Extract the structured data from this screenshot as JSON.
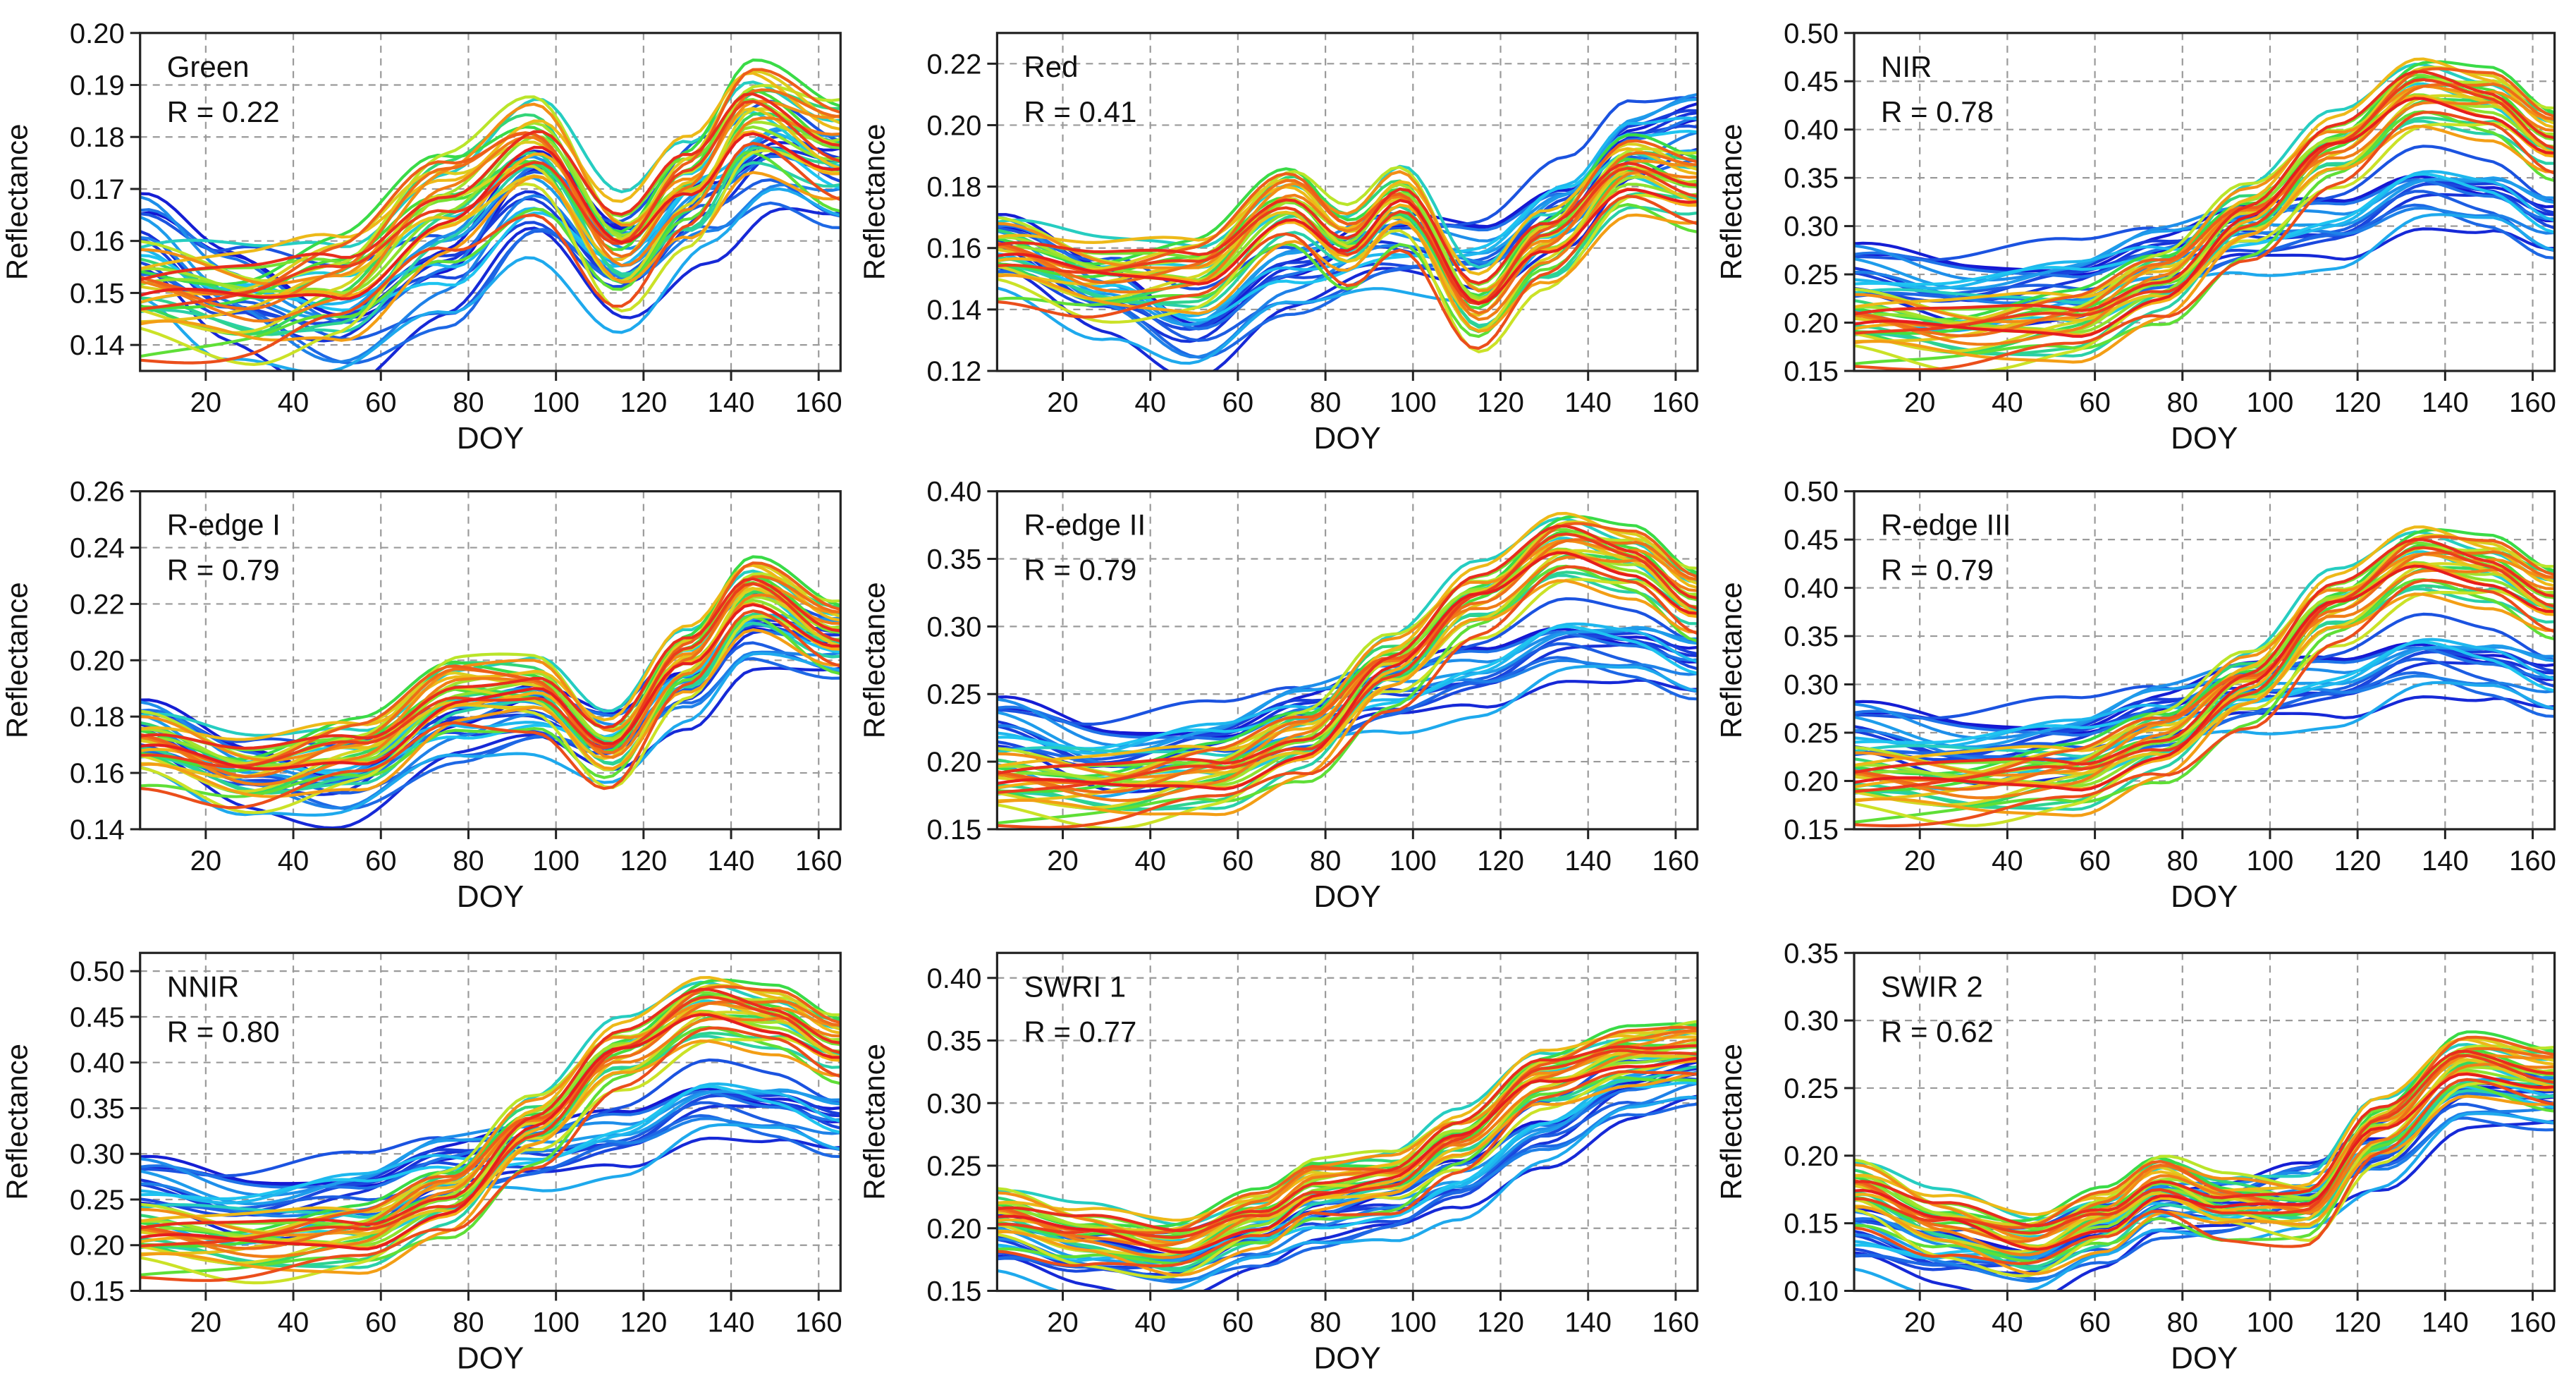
{
  "figure": {
    "xlabel": "DOY",
    "ylabel": "Reflectance"
  },
  "colors": {
    "low": "#1414d2",
    "mid": "#1ec8f0",
    "high": "#e61e1e",
    "grid": "#9a9a9a",
    "frame": "#222222"
  },
  "chart_data": [
    {
      "type": "line",
      "title": "Green",
      "annotation": "R = 0.22",
      "xlabel": "DOY",
      "ylabel": "Reflectance",
      "xlim": [
        5,
        165
      ],
      "ylim": [
        0.135,
        0.2
      ],
      "xticks": [
        "20",
        "40",
        "60",
        "80",
        "100",
        "120",
        "140",
        "160"
      ],
      "yticks": [
        "0.14",
        "0.15",
        "0.16",
        "0.17",
        "0.18",
        "0.19",
        "0.20"
      ],
      "profile": [
        [
          5,
          0.15
        ],
        [
          30,
          0.148
        ],
        [
          50,
          0.152
        ],
        [
          75,
          0.168
        ],
        [
          95,
          0.178
        ],
        [
          115,
          0.158
        ],
        [
          130,
          0.17
        ],
        [
          145,
          0.185
        ],
        [
          165,
          0.178
        ]
      ],
      "low_mean": [
        [
          5,
          0.16
        ],
        [
          25,
          0.15
        ],
        [
          50,
          0.143
        ],
        [
          75,
          0.153
        ],
        [
          95,
          0.168
        ],
        [
          115,
          0.155
        ],
        [
          135,
          0.168
        ],
        [
          150,
          0.176
        ],
        [
          165,
          0.172
        ]
      ],
      "spread": 0.01
    },
    {
      "type": "line",
      "title": "Red",
      "annotation": "R = 0.41",
      "xlabel": "DOY",
      "ylabel": "Reflectance",
      "xlim": [
        5,
        165
      ],
      "ylim": [
        0.12,
        0.23
      ],
      "xticks": [
        "20",
        "40",
        "60",
        "80",
        "100",
        "120",
        "140",
        "160"
      ],
      "yticks": [
        "0.12",
        "0.14",
        "0.16",
        "0.18",
        "0.20",
        "0.22"
      ],
      "profile": [
        [
          5,
          0.158
        ],
        [
          30,
          0.15
        ],
        [
          50,
          0.152
        ],
        [
          72,
          0.175
        ],
        [
          85,
          0.162
        ],
        [
          97,
          0.175
        ],
        [
          115,
          0.14
        ],
        [
          130,
          0.16
        ],
        [
          150,
          0.185
        ],
        [
          165,
          0.18
        ]
      ],
      "low_mean": [
        [
          5,
          0.16
        ],
        [
          30,
          0.145
        ],
        [
          50,
          0.132
        ],
        [
          72,
          0.15
        ],
        [
          95,
          0.16
        ],
        [
          115,
          0.158
        ],
        [
          135,
          0.175
        ],
        [
          150,
          0.195
        ],
        [
          165,
          0.2
        ]
      ],
      "spread": 0.012
    },
    {
      "type": "line",
      "title": "NIR",
      "annotation": "R = 0.78",
      "xlabel": "DOY",
      "ylabel": "Reflectance",
      "xlim": [
        5,
        165
      ],
      "ylim": [
        0.15,
        0.5
      ],
      "xticks": [
        "20",
        "40",
        "60",
        "80",
        "100",
        "120",
        "140",
        "160"
      ],
      "yticks": [
        "0.15",
        "0.20",
        "0.25",
        "0.30",
        "0.35",
        "0.40",
        "0.45",
        "0.50"
      ],
      "profile": [
        [
          5,
          0.2
        ],
        [
          30,
          0.19
        ],
        [
          55,
          0.2
        ],
        [
          75,
          0.24
        ],
        [
          95,
          0.31
        ],
        [
          115,
          0.38
        ],
        [
          135,
          0.44
        ],
        [
          150,
          0.43
        ],
        [
          165,
          0.39
        ]
      ],
      "low_mean": [
        [
          5,
          0.25
        ],
        [
          30,
          0.235
        ],
        [
          55,
          0.245
        ],
        [
          75,
          0.27
        ],
        [
          95,
          0.29
        ],
        [
          115,
          0.3
        ],
        [
          135,
          0.34
        ],
        [
          150,
          0.33
        ],
        [
          165,
          0.3
        ]
      ],
      "spread": 0.035
    },
    {
      "type": "line",
      "title": "R-edge I",
      "annotation": "R = 0.79",
      "xlabel": "DOY",
      "ylabel": "Reflectance",
      "xlim": [
        5,
        165
      ],
      "ylim": [
        0.14,
        0.26
      ],
      "xticks": [
        "20",
        "40",
        "60",
        "80",
        "100",
        "120",
        "140",
        "160"
      ],
      "yticks": [
        "0.14",
        "0.16",
        "0.18",
        "0.20",
        "0.22",
        "0.24",
        "0.26"
      ],
      "profile": [
        [
          5,
          0.17
        ],
        [
          30,
          0.16
        ],
        [
          55,
          0.168
        ],
        [
          78,
          0.19
        ],
        [
          95,
          0.19
        ],
        [
          112,
          0.168
        ],
        [
          130,
          0.2
        ],
        [
          145,
          0.225
        ],
        [
          165,
          0.21
        ]
      ],
      "low_mean": [
        [
          5,
          0.175
        ],
        [
          30,
          0.16
        ],
        [
          50,
          0.155
        ],
        [
          78,
          0.175
        ],
        [
          95,
          0.18
        ],
        [
          112,
          0.172
        ],
        [
          130,
          0.19
        ],
        [
          145,
          0.21
        ],
        [
          165,
          0.205
        ]
      ],
      "spread": 0.012
    },
    {
      "type": "line",
      "title": "R-edge II",
      "annotation": "R = 0.79",
      "xlabel": "DOY",
      "ylabel": "Reflectance",
      "xlim": [
        5,
        165
      ],
      "ylim": [
        0.15,
        0.4
      ],
      "xticks": [
        "20",
        "40",
        "60",
        "80",
        "100",
        "120",
        "140",
        "160"
      ],
      "yticks": [
        "0.15",
        "0.20",
        "0.25",
        "0.30",
        "0.35",
        "0.40"
      ],
      "profile": [
        [
          5,
          0.185
        ],
        [
          30,
          0.18
        ],
        [
          55,
          0.19
        ],
        [
          75,
          0.215
        ],
        [
          95,
          0.27
        ],
        [
          115,
          0.32
        ],
        [
          135,
          0.36
        ],
        [
          150,
          0.35
        ],
        [
          165,
          0.32
        ]
      ],
      "low_mean": [
        [
          5,
          0.225
        ],
        [
          30,
          0.205
        ],
        [
          55,
          0.215
        ],
        [
          75,
          0.235
        ],
        [
          95,
          0.25
        ],
        [
          115,
          0.265
        ],
        [
          135,
          0.29
        ],
        [
          150,
          0.285
        ],
        [
          165,
          0.27
        ]
      ],
      "spread": 0.025
    },
    {
      "type": "line",
      "title": "R-edge III",
      "annotation": "R = 0.79",
      "xlabel": "DOY",
      "ylabel": "Reflectance",
      "xlim": [
        5,
        165
      ],
      "ylim": [
        0.15,
        0.5
      ],
      "xticks": [
        "20",
        "40",
        "60",
        "80",
        "100",
        "120",
        "140",
        "160"
      ],
      "yticks": [
        "0.15",
        "0.20",
        "0.25",
        "0.30",
        "0.35",
        "0.40",
        "0.45",
        "0.50"
      ],
      "profile": [
        [
          5,
          0.2
        ],
        [
          30,
          0.195
        ],
        [
          55,
          0.205
        ],
        [
          75,
          0.24
        ],
        [
          95,
          0.3
        ],
        [
          115,
          0.38
        ],
        [
          135,
          0.43
        ],
        [
          150,
          0.42
        ],
        [
          165,
          0.39
        ]
      ],
      "low_mean": [
        [
          5,
          0.25
        ],
        [
          30,
          0.235
        ],
        [
          55,
          0.245
        ],
        [
          75,
          0.27
        ],
        [
          95,
          0.29
        ],
        [
          115,
          0.3
        ],
        [
          135,
          0.33
        ],
        [
          150,
          0.32
        ],
        [
          165,
          0.3
        ]
      ],
      "spread": 0.035
    },
    {
      "type": "line",
      "title": "NNIR",
      "annotation": "R = 0.80",
      "xlabel": "DOY",
      "ylabel": "Reflectance",
      "xlim": [
        5,
        165
      ],
      "ylim": [
        0.15,
        0.52
      ],
      "xticks": [
        "20",
        "40",
        "60",
        "80",
        "100",
        "120",
        "140",
        "160"
      ],
      "yticks": [
        "0.15",
        "0.20",
        "0.25",
        "0.30",
        "0.35",
        "0.40",
        "0.45",
        "0.50"
      ],
      "profile": [
        [
          5,
          0.21
        ],
        [
          30,
          0.2
        ],
        [
          55,
          0.21
        ],
        [
          75,
          0.25
        ],
        [
          95,
          0.33
        ],
        [
          115,
          0.41
        ],
        [
          135,
          0.46
        ],
        [
          150,
          0.45
        ],
        [
          165,
          0.42
        ]
      ],
      "low_mean": [
        [
          5,
          0.265
        ],
        [
          30,
          0.245
        ],
        [
          55,
          0.26
        ],
        [
          75,
          0.29
        ],
        [
          95,
          0.3
        ],
        [
          115,
          0.32
        ],
        [
          135,
          0.36
        ],
        [
          150,
          0.35
        ],
        [
          165,
          0.33
        ]
      ],
      "spread": 0.035
    },
    {
      "type": "line",
      "title": "SWRI 1",
      "annotation": "R = 0.77",
      "xlabel": "DOY",
      "ylabel": "Reflectance",
      "xlim": [
        5,
        165
      ],
      "ylim": [
        0.15,
        0.42
      ],
      "xticks": [
        "20",
        "40",
        "60",
        "80",
        "100",
        "120",
        "140",
        "160"
      ],
      "yticks": [
        "0.15",
        "0.20",
        "0.25",
        "0.30",
        "0.35",
        "0.40"
      ],
      "profile": [
        [
          5,
          0.21
        ],
        [
          25,
          0.195
        ],
        [
          45,
          0.185
        ],
        [
          65,
          0.21
        ],
        [
          78,
          0.235
        ],
        [
          95,
          0.24
        ],
        [
          110,
          0.27
        ],
        [
          130,
          0.32
        ],
        [
          150,
          0.34
        ],
        [
          165,
          0.345
        ]
      ],
      "low_mean": [
        [
          5,
          0.19
        ],
        [
          25,
          0.175
        ],
        [
          45,
          0.17
        ],
        [
          65,
          0.19
        ],
        [
          78,
          0.205
        ],
        [
          95,
          0.215
        ],
        [
          110,
          0.235
        ],
        [
          130,
          0.275
        ],
        [
          150,
          0.31
        ],
        [
          165,
          0.32
        ]
      ],
      "spread": 0.022
    },
    {
      "type": "line",
      "title": "SWIR 2",
      "annotation": "R = 0.62",
      "xlabel": "DOY",
      "ylabel": "Reflectance",
      "xlim": [
        5,
        165
      ],
      "ylim": [
        0.1,
        0.35
      ],
      "xticks": [
        "20",
        "40",
        "60",
        "80",
        "100",
        "120",
        "140",
        "160"
      ],
      "yticks": [
        "0.10",
        "0.15",
        "0.20",
        "0.25",
        "0.30",
        "0.35"
      ],
      "profile": [
        [
          5,
          0.175
        ],
        [
          25,
          0.15
        ],
        [
          45,
          0.135
        ],
        [
          62,
          0.155
        ],
        [
          75,
          0.18
        ],
        [
          90,
          0.165
        ],
        [
          108,
          0.16
        ],
        [
          125,
          0.22
        ],
        [
          145,
          0.27
        ],
        [
          165,
          0.26
        ]
      ],
      "low_mean": [
        [
          5,
          0.14
        ],
        [
          25,
          0.125
        ],
        [
          45,
          0.12
        ],
        [
          62,
          0.14
        ],
        [
          75,
          0.16
        ],
        [
          90,
          0.16
        ],
        [
          108,
          0.175
        ],
        [
          125,
          0.2
        ],
        [
          145,
          0.245
        ],
        [
          165,
          0.24
        ]
      ],
      "spread": 0.022
    }
  ]
}
